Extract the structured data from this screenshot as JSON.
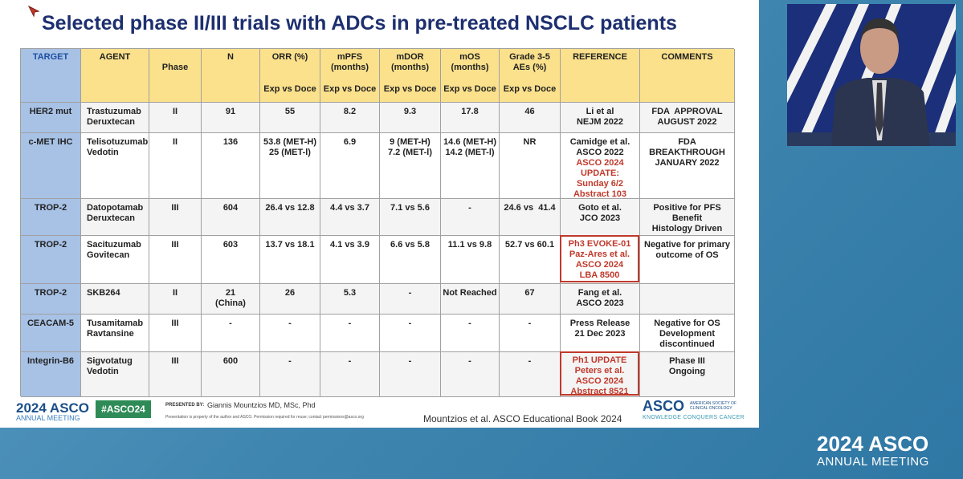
{
  "title": "Selected phase II/III trials with ADCs in pre-treated NSCLC patients",
  "table": {
    "header": [
      {
        "label": [
          "TARGET"
        ]
      },
      {
        "label": [
          "AGENT"
        ]
      },
      {
        "label": [
          "Phase"
        ]
      },
      {
        "label": [
          "N"
        ]
      },
      {
        "label": [
          "ORR (%)"
        ],
        "sub": "Exp vs Doce"
      },
      {
        "label": [
          "mPFS",
          "(months)"
        ],
        "sub": "Exp vs Doce"
      },
      {
        "label": [
          "mDOR",
          "(months)"
        ],
        "sub": "Exp vs Doce"
      },
      {
        "label": [
          "mOS",
          "(months)"
        ],
        "sub": "Exp vs Doce"
      },
      {
        "label": [
          "Grade 3-5",
          "AEs (%)"
        ],
        "sub": "Exp vs Doce"
      },
      {
        "label": [
          "REFERENCE"
        ]
      },
      {
        "label": [
          "COMMENTS"
        ]
      }
    ],
    "rows": [
      {
        "cells": [
          [
            "HER2 mut"
          ],
          [
            "Trastuzumab",
            "Deruxtecan"
          ],
          [
            "II"
          ],
          [
            "91"
          ],
          [
            "55"
          ],
          [
            "8.2"
          ],
          [
            "9.3"
          ],
          [
            "17.8"
          ],
          [
            "46"
          ],
          [
            "Li et al",
            "NEJM 2022"
          ],
          [
            "FDA  APPROVAL",
            "AUGUST 2022"
          ]
        ],
        "update": []
      },
      {
        "cells": [
          [
            "c-MET IHC"
          ],
          [
            "Telisotuzumab",
            "Vedotin"
          ],
          [
            "II"
          ],
          [
            "136"
          ],
          [
            "53.8 (MET-H)",
            "25 (MET-l)"
          ],
          [
            "6.9"
          ],
          [
            "9 (MET-H)",
            "7.2 (MET-l)"
          ],
          [
            "14.6 (MET-H)",
            "14.2 (MET-l)"
          ],
          [
            "NR"
          ],
          [
            "Camidge et al.",
            "ASCO 2022"
          ],
          [
            "FDA",
            "BREAKTHROUGH",
            "JANUARY 2022"
          ]
        ],
        "update": [
          "ASCO 2024",
          "UPDATE:",
          "Sunday 6/2",
          "Abstract 103"
        ]
      },
      {
        "cells": [
          [
            "TROP-2"
          ],
          [
            "Datopotamab",
            "Deruxtecan"
          ],
          [
            "III"
          ],
          [
            "604"
          ],
          [
            "26.4 vs 12.8"
          ],
          [
            "4.4 vs 3.7"
          ],
          [
            "7.1 vs 5.6"
          ],
          [
            "-"
          ],
          [
            "24.6 vs  41.4"
          ],
          [
            "Goto et al.",
            "JCO 2023"
          ],
          [
            "Positive for PFS",
            "Benefit",
            "Histology Driven"
          ]
        ],
        "update": []
      },
      {
        "cells": [
          [
            "TROP-2"
          ],
          [
            "Sacituzumab",
            "Govitecan"
          ],
          [
            "III"
          ],
          [
            "603"
          ],
          [
            "13.7 vs 18.1"
          ],
          [
            "4.1 vs 3.9"
          ],
          [
            "6.6 vs 5.8"
          ],
          [
            "11.1 vs 9.8"
          ],
          [
            "52.7 vs 60.1"
          ],
          [],
          [
            "Negative for primary",
            "outcome of OS"
          ]
        ],
        "update": [
          "Ph3 EVOKE-01",
          "Paz-Ares et al.",
          "ASCO 2024",
          "LBA 8500"
        ]
      },
      {
        "cells": [
          [
            "TROP-2"
          ],
          [
            "SKB264"
          ],
          [
            "II"
          ],
          [
            "21",
            "(China)"
          ],
          [
            "26"
          ],
          [
            "5.3"
          ],
          [
            "-"
          ],
          [
            "Not Reached"
          ],
          [
            "67"
          ],
          [
            "Fang et al.",
            "ASCO 2023"
          ],
          []
        ],
        "update": []
      },
      {
        "cells": [
          [
            "CEACAM-5"
          ],
          [
            "Tusamitamab",
            "Ravtansine"
          ],
          [
            "III"
          ],
          [
            "-"
          ],
          [
            "-"
          ],
          [
            "-"
          ],
          [
            "-"
          ],
          [
            "-"
          ],
          [
            "-"
          ],
          [
            "Press Release",
            "21 Dec 2023"
          ],
          [
            "Negative for OS",
            "Development",
            "discontinued"
          ]
        ],
        "update": []
      },
      {
        "cells": [
          [
            "Integrin-B6"
          ],
          [
            "Sigvotatug",
            "Vedotin"
          ],
          [
            "III"
          ],
          [
            "600"
          ],
          [
            "-"
          ],
          [
            "-"
          ],
          [
            "-"
          ],
          [
            "-"
          ],
          [
            "-"
          ],
          [],
          [
            "Phase III",
            "Ongoing"
          ]
        ],
        "update": [
          "Ph1 UPDATE",
          "Peters et al.",
          "ASCO 2024",
          "Abstract 8521"
        ]
      }
    ]
  },
  "footer": {
    "logo_year": "2024 ASCO",
    "logo_meeting": "ANNUAL MEETING",
    "hashtag": "#ASCO24",
    "presented_by": "PRESENTED BY:",
    "presenter": "Giannis Mountzios MD, MSc, Phd",
    "notice": "Presentation is property of the author and ASCO. Permission required for reuse; contact permissions@asco.org",
    "source": "Mountzios et al. ASCO Educational Book 2024",
    "asco": "ASCO",
    "society": [
      "AMERICAN SOCIETY OF",
      "CLINICAL ONCOLOGY"
    ],
    "tagline": "KNOWLEDGE CONQUERS CANCER"
  },
  "overlay": {
    "year": "2024 ASCO",
    "meeting": "ANNUAL MEETING"
  }
}
